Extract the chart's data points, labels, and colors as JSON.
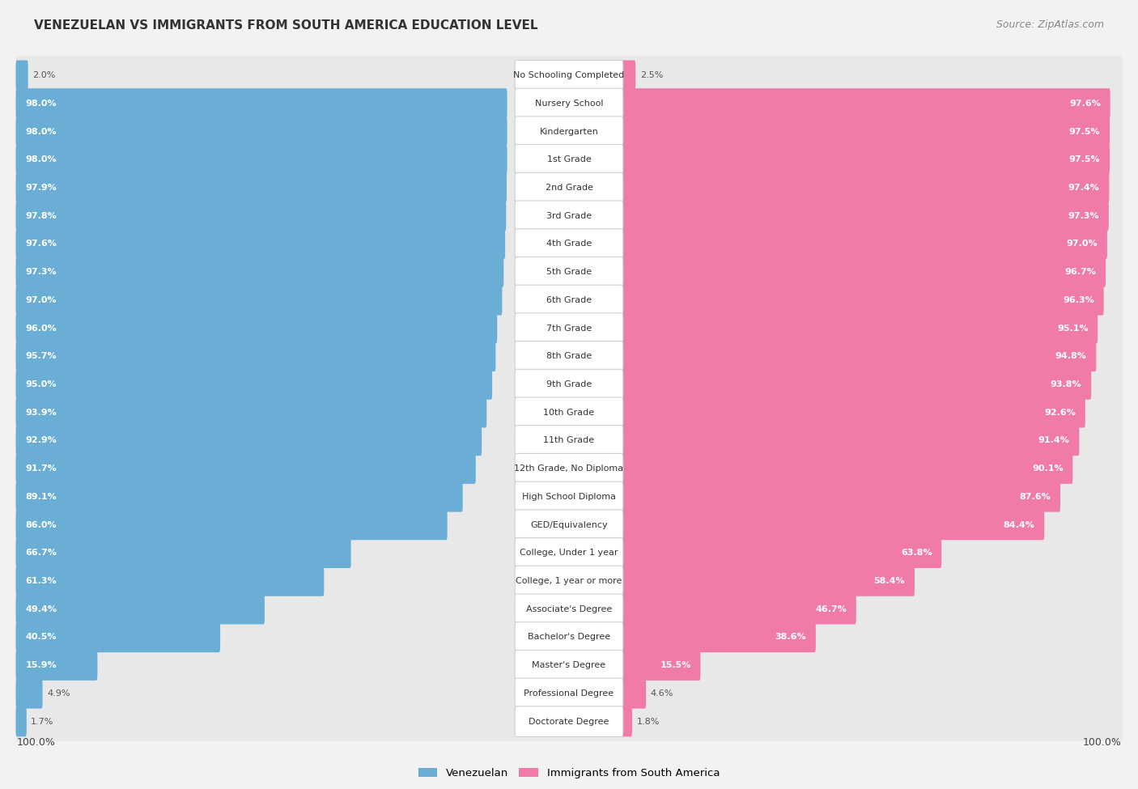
{
  "title": "VENEZUELAN VS IMMIGRANTS FROM SOUTH AMERICA EDUCATION LEVEL",
  "source": "Source: ZipAtlas.com",
  "categories": [
    "No Schooling Completed",
    "Nursery School",
    "Kindergarten",
    "1st Grade",
    "2nd Grade",
    "3rd Grade",
    "4th Grade",
    "5th Grade",
    "6th Grade",
    "7th Grade",
    "8th Grade",
    "9th Grade",
    "10th Grade",
    "11th Grade",
    "12th Grade, No Diploma",
    "High School Diploma",
    "GED/Equivalency",
    "College, Under 1 year",
    "College, 1 year or more",
    "Associate's Degree",
    "Bachelor's Degree",
    "Master's Degree",
    "Professional Degree",
    "Doctorate Degree"
  ],
  "venezuelan": [
    2.0,
    98.0,
    98.0,
    98.0,
    97.9,
    97.8,
    97.6,
    97.3,
    97.0,
    96.0,
    95.7,
    95.0,
    93.9,
    92.9,
    91.7,
    89.1,
    86.0,
    66.7,
    61.3,
    49.4,
    40.5,
    15.9,
    4.9,
    1.7
  ],
  "immigrants": [
    2.5,
    97.6,
    97.5,
    97.5,
    97.4,
    97.3,
    97.0,
    96.7,
    96.3,
    95.1,
    94.8,
    93.8,
    92.6,
    91.4,
    90.1,
    87.6,
    84.4,
    63.8,
    58.4,
    46.7,
    38.6,
    15.5,
    4.6,
    1.8
  ],
  "venezuelan_color": "#6aaed6",
  "immigrants_color": "#f07aa8",
  "background_color": "#f2f2f2",
  "row_bg_color": "#e8e8e8",
  "center_box_color": "#ffffff",
  "label_venezuelan": "Venezuelan",
  "label_immigrants": "Immigrants from South America",
  "axis_label_left": "100.0%",
  "axis_label_right": "100.0%",
  "title_fontsize": 11,
  "source_fontsize": 9,
  "value_fontsize": 8,
  "cat_fontsize": 8
}
